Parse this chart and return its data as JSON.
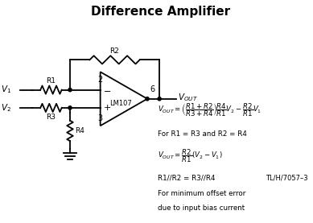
{
  "title": "Difference Amplifier",
  "title_fontsize": 11,
  "title_fontweight": "bold",
  "bg_color": "#ffffff",
  "line_color": "#000000",
  "text_color": "#000000",
  "fig_width": 3.89,
  "fig_height": 2.77,
  "dpi": 100,
  "opamp_label": "LM107",
  "formula_ref": "TL/H/7057–3",
  "formula_cond": "For R1 = R3 and R2 = R4",
  "formula_note1": "R1//R2 = R3//R4",
  "formula_note2": "For minimum offset error",
  "formula_note3": "due to input bias current"
}
